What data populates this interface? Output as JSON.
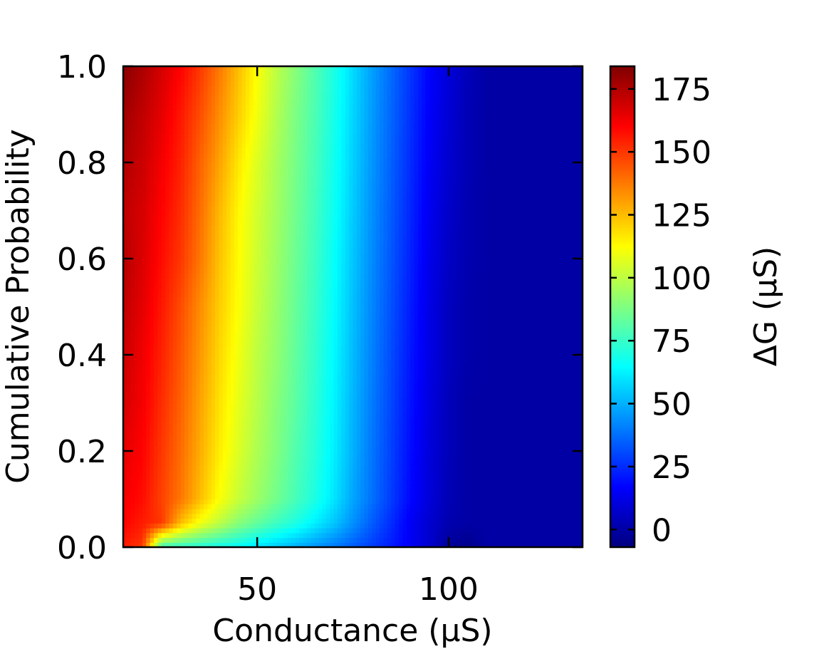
{
  "chart_data": {
    "type": "heatmap",
    "title": "",
    "xlabel": "Conductance (μS)",
    "ylabel": "Cumulative Probability",
    "xlim": [
      15,
      135
    ],
    "ylim": [
      0.0,
      1.0
    ],
    "x_ticks": [
      50,
      100
    ],
    "x_tick_labels": [
      "50",
      "100"
    ],
    "y_ticks": [
      0.0,
      0.2,
      0.4,
      0.6,
      0.8,
      1.0
    ],
    "y_tick_labels": [
      "0.0",
      "0.2",
      "0.4",
      "0.6",
      "0.8",
      "1.0"
    ],
    "colormap": "jet",
    "colorbar": {
      "label": "ΔG (μS)",
      "range": [
        -7,
        184
      ],
      "ticks": [
        0,
        25,
        50,
        75,
        100,
        125,
        150,
        175
      ],
      "tick_labels": [
        "0",
        "25",
        "50",
        "75",
        "100",
        "125",
        "150",
        "175"
      ]
    },
    "grid": false,
    "x": [
      15,
      20,
      25,
      30,
      35,
      40,
      45,
      50,
      55,
      60,
      65,
      70,
      75,
      80,
      85,
      90,
      95,
      100,
      105,
      110,
      115,
      120,
      125,
      130,
      135
    ],
    "y": [
      0.0,
      0.05,
      0.1,
      0.2,
      0.3,
      0.4,
      0.5,
      0.6,
      0.7,
      0.8,
      0.9,
      1.0
    ],
    "z": [
      [
        155,
        150,
        75,
        73,
        71,
        68,
        65,
        60,
        55,
        50,
        45,
        40,
        34,
        28,
        22,
        15,
        8,
        -2,
        -5,
        0,
        0,
        0,
        0,
        0,
        0
      ],
      [
        160,
        155,
        150,
        125,
        110,
        100,
        90,
        83,
        76,
        70,
        62,
        54,
        44,
        34,
        25,
        15,
        8,
        2,
        0,
        0,
        0,
        0,
        0,
        0,
        0
      ],
      [
        162,
        158,
        148,
        138,
        125,
        112,
        102,
        94,
        86,
        78,
        70,
        60,
        48,
        38,
        28,
        18,
        10,
        3,
        0,
        0,
        0,
        0,
        0,
        0,
        0
      ],
      [
        165,
        160,
        150,
        140,
        128,
        116,
        106,
        97,
        89,
        80,
        72,
        62,
        50,
        39,
        29,
        19,
        10,
        4,
        0,
        0,
        0,
        0,
        0,
        0,
        0
      ],
      [
        168,
        162,
        152,
        142,
        130,
        118,
        108,
        99,
        90,
        82,
        73,
        63,
        51,
        40,
        30,
        20,
        11,
        4,
        0,
        0,
        0,
        0,
        0,
        0,
        0
      ],
      [
        170,
        163,
        154,
        144,
        132,
        120,
        110,
        100,
        92,
        83,
        74,
        64,
        52,
        41,
        31,
        21,
        12,
        5,
        1,
        0,
        0,
        0,
        0,
        0,
        0
      ],
      [
        172,
        165,
        156,
        146,
        134,
        122,
        112,
        102,
        93,
        84,
        75,
        65,
        53,
        42,
        32,
        22,
        12,
        5,
        1,
        0,
        0,
        0,
        0,
        0,
        0
      ],
      [
        174,
        167,
        158,
        150,
        138,
        124,
        113,
        103,
        94,
        85,
        76,
        66,
        54,
        43,
        33,
        23,
        13,
        6,
        2,
        0,
        0,
        0,
        0,
        0,
        0
      ],
      [
        172,
        168,
        160,
        152,
        140,
        126,
        114,
        104,
        95,
        86,
        77,
        67,
        55,
        44,
        34,
        24,
        14,
        7,
        2,
        0,
        0,
        0,
        0,
        0,
        0
      ],
      [
        175,
        170,
        162,
        154,
        142,
        130,
        117,
        106,
        96,
        87,
        78,
        68,
        56,
        45,
        35,
        25,
        15,
        8,
        3,
        0,
        0,
        0,
        0,
        0,
        0
      ],
      [
        178,
        172,
        165,
        156,
        146,
        134,
        122,
        110,
        98,
        88,
        79,
        69,
        57,
        46,
        36,
        26,
        16,
        9,
        3,
        0,
        0,
        0,
        0,
        0,
        0
      ],
      [
        182,
        176,
        168,
        160,
        150,
        138,
        125,
        112,
        100,
        90,
        80,
        70,
        58,
        47,
        37,
        27,
        17,
        10,
        4,
        0,
        0,
        0,
        0,
        0,
        0
      ]
    ]
  }
}
